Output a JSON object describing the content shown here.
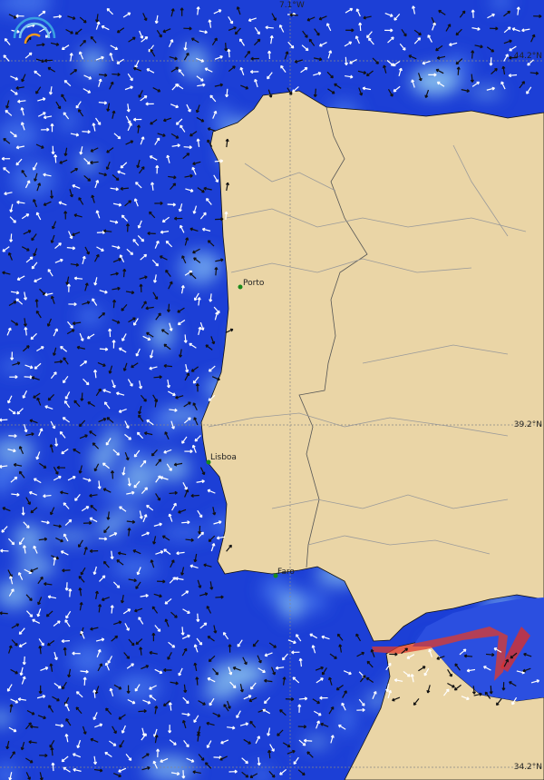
{
  "map": {
    "grid_labels": {
      "lon_top": "7.1°W",
      "lat_top": "44.2°N",
      "lat_mid": "39.2°N",
      "lat_bottom": "34.2°N"
    },
    "cities": [
      "Porto",
      "Lisboa",
      "Faro"
    ]
  }
}
